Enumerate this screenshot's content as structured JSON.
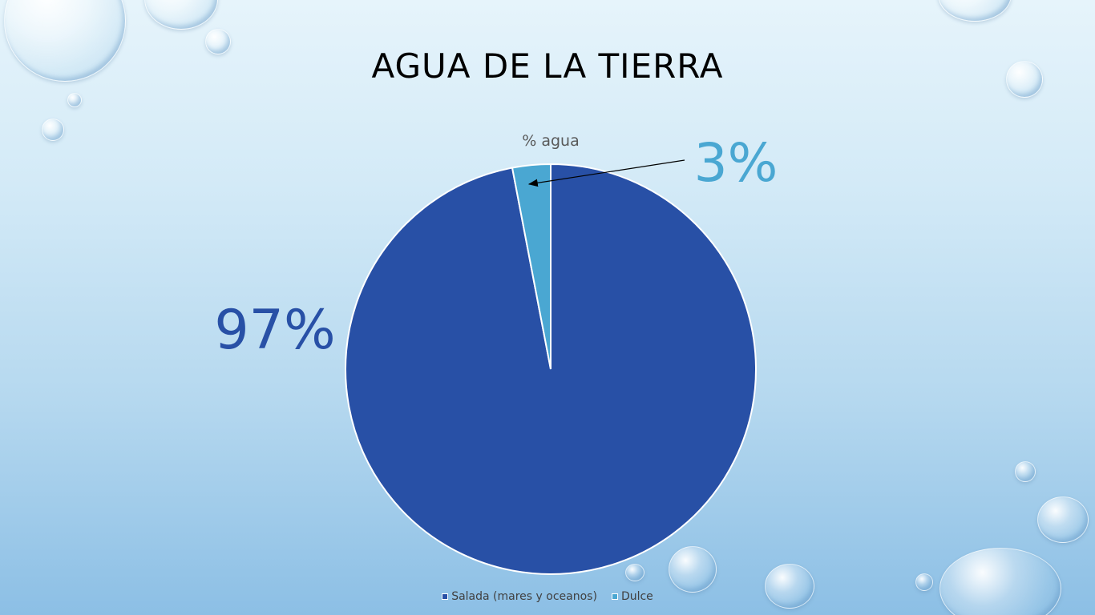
{
  "slide": {
    "title": "AGUA DE LA TIERRA"
  },
  "chart_data": {
    "type": "pie",
    "title": "% agua",
    "categories": [
      "Salada (mares y oceanos)",
      "Dulce"
    ],
    "values": [
      97,
      3
    ],
    "labels": [
      "97%",
      "3%"
    ],
    "colors": [
      "#2850a6",
      "#4aa7d2"
    ],
    "legend": "bottom",
    "start_angle_deg": 0,
    "direction": "counterclockwise"
  }
}
